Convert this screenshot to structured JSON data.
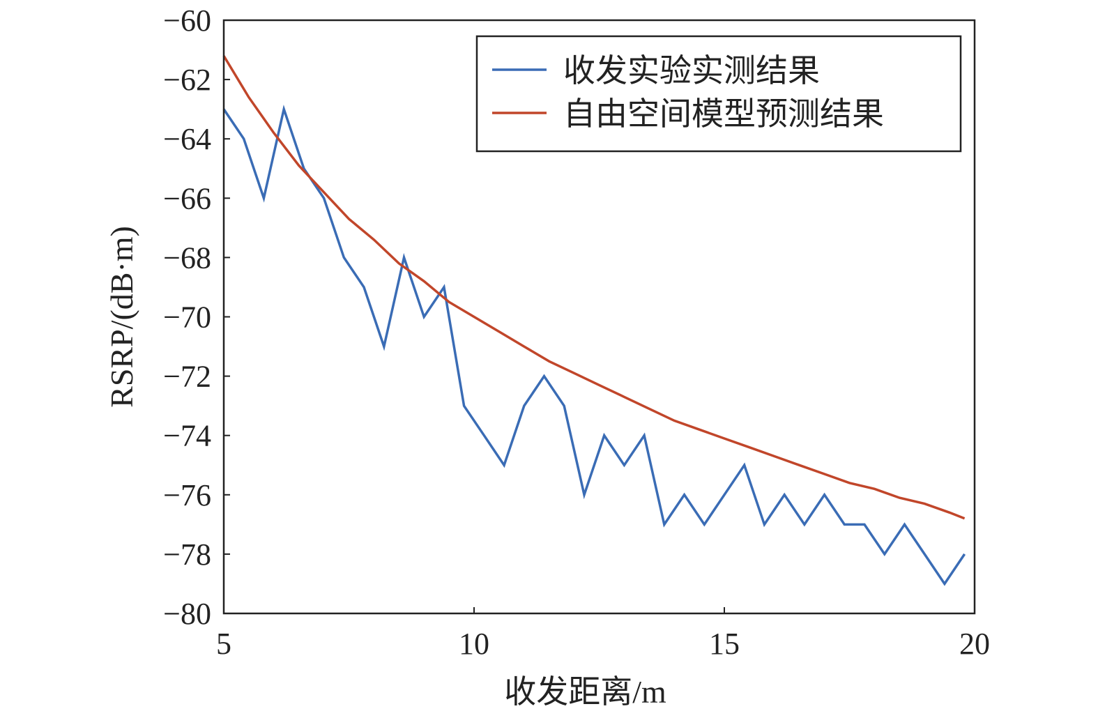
{
  "chart_data": {
    "type": "line",
    "xlabel": "收发距离/m",
    "ylabel": "RSRP/(dB·m)",
    "xlim": [
      5,
      20
    ],
    "ylim": [
      -80,
      -60
    ],
    "xticks": [
      5,
      10,
      15,
      20
    ],
    "yticks": [
      -60,
      -62,
      -64,
      -66,
      -68,
      -70,
      -72,
      -74,
      -76,
      -78,
      -80
    ],
    "xtick_labels": [
      "5",
      "10",
      "15",
      "20"
    ],
    "ytick_labels": [
      "−60",
      "−62",
      "−64",
      "−66",
      "−68",
      "−70",
      "−72",
      "−74",
      "−76",
      "−78",
      "−80"
    ],
    "grid": false,
    "legend_position": "top-right",
    "series": [
      {
        "name": "收发实验实测结果",
        "color": "#3a6cb5",
        "x": [
          5.0,
          5.4,
          5.8,
          6.2,
          6.6,
          7.0,
          7.4,
          7.8,
          8.2,
          8.6,
          9.0,
          9.4,
          9.8,
          10.2,
          10.6,
          11.0,
          11.4,
          11.8,
          12.2,
          12.6,
          13.0,
          13.4,
          13.8,
          14.2,
          14.6,
          15.0,
          15.4,
          15.8,
          16.2,
          16.6,
          17.0,
          17.4,
          17.8,
          18.2,
          18.6,
          19.0,
          19.4,
          19.8
        ],
        "y": [
          -63,
          -64,
          -66,
          -63,
          -65,
          -66,
          -68,
          -69,
          -71,
          -68,
          -70,
          -69,
          -73,
          -74,
          -75,
          -73,
          -72,
          -73,
          -76,
          -74,
          -75,
          -74,
          -77,
          -76,
          -77,
          -76,
          -75,
          -77,
          -76,
          -77,
          -76,
          -77,
          -77,
          -78,
          -77,
          -78,
          -79,
          -78
        ]
      },
      {
        "name": "自由空间模型预测结果",
        "color": "#c1462a",
        "x": [
          5.0,
          5.5,
          6.0,
          6.5,
          7.0,
          7.5,
          8.0,
          8.5,
          9.0,
          9.5,
          10.0,
          10.5,
          11.0,
          11.5,
          12.0,
          12.5,
          13.0,
          13.5,
          14.0,
          14.5,
          15.0,
          15.5,
          16.0,
          16.5,
          17.0,
          17.5,
          18.0,
          18.5,
          19.0,
          19.5,
          19.8
        ],
        "y": [
          -61.2,
          -62.6,
          -63.8,
          -64.9,
          -65.8,
          -66.7,
          -67.4,
          -68.2,
          -68.8,
          -69.5,
          -70.0,
          -70.5,
          -71.0,
          -71.5,
          -71.9,
          -72.3,
          -72.7,
          -73.1,
          -73.5,
          -73.8,
          -74.1,
          -74.4,
          -74.7,
          -75.0,
          -75.3,
          -75.6,
          -75.8,
          -76.1,
          -76.3,
          -76.6,
          -76.8
        ]
      }
    ]
  }
}
